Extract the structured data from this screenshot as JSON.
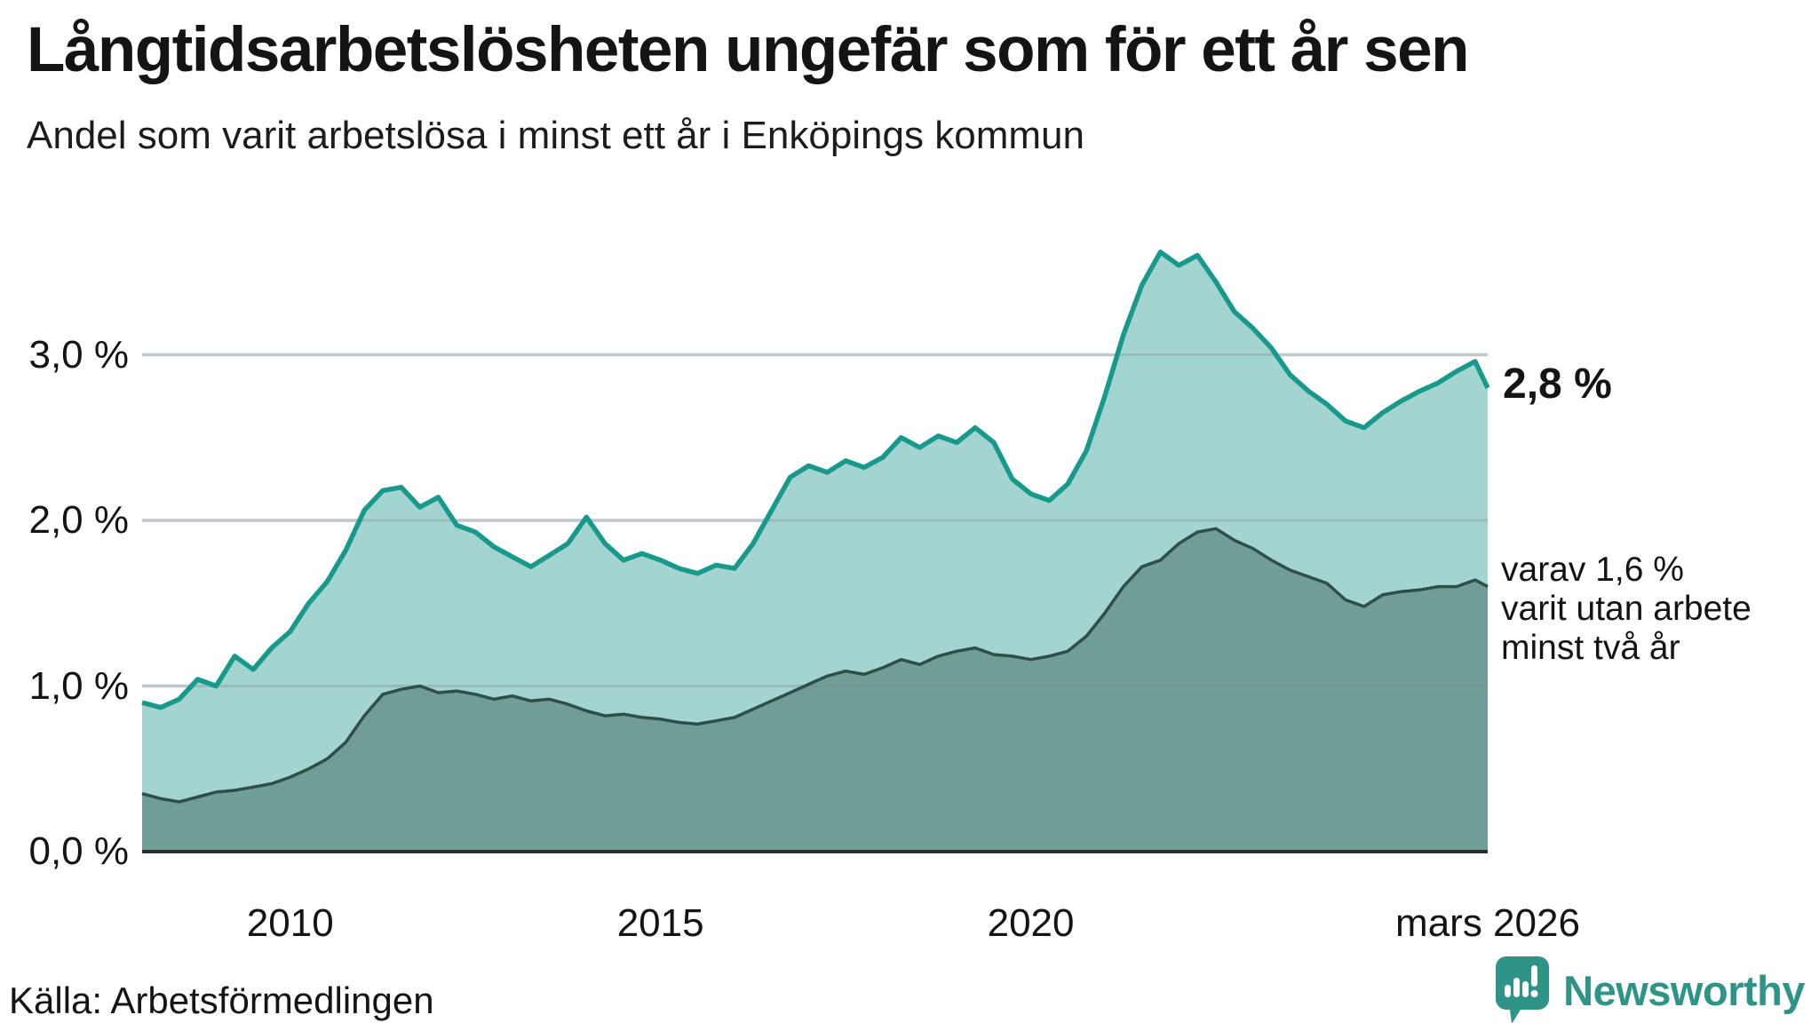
{
  "title": "Långtidsarbetslösheten ungefär som för ett år sen",
  "subtitle": "Andel som varit arbetslösa i minst ett år i Enköpings kommun",
  "annotations": {
    "latest_value": "2,8 %",
    "secondary_line1": "varav 1,6 %",
    "secondary_line2": "varit utan arbete",
    "secondary_line3": "minst två år"
  },
  "source": "Källa: Arbetsförmedlingen",
  "logo": {
    "text": "Newsworthy",
    "icon": "speech-bubble-bar-chart-icon"
  },
  "colors": {
    "series1_line": "#17998b",
    "series1_fill": "#a3d4cf",
    "series2_line": "#2e4f49",
    "series2_fill": "#709d98",
    "gridline": "#dfe3e8",
    "gridline_overlay": "rgba(120,132,144,0.30)",
    "axis_line": "#26302f",
    "text": "#141414",
    "brand_teal": "#2f9488"
  },
  "chart_data": {
    "type": "area",
    "title": "Långtidsarbetslösheten ungefär som för ett år sen",
    "subtitle": "Andel som varit arbetslösa i minst ett år i Enköpings kommun",
    "unit": "%",
    "x_unit": "decimal-year (monthly series, jan 2008 – mars 2026)",
    "xlim": [
      2008.0,
      2026.17
    ],
    "ylim": [
      0,
      3.7
    ],
    "grid": "horizontal",
    "y_ticks": [
      {
        "label": "3,0 %",
        "value": 3
      },
      {
        "label": "2,0 %",
        "value": 2
      },
      {
        "label": "1,0 %",
        "value": 1
      },
      {
        "label": "0,0 %",
        "value": 0
      }
    ],
    "x_ticks": [
      {
        "label": "2010",
        "t": 2010
      },
      {
        "label": "2015",
        "t": 2015
      },
      {
        "label": "2020",
        "t": 2020
      },
      {
        "label": "mars 2026",
        "t": 2026.17
      }
    ],
    "x": [
      2008.0,
      2008.25,
      2008.5,
      2008.75,
      2009.0,
      2009.25,
      2009.5,
      2009.75,
      2010.0,
      2010.25,
      2010.5,
      2010.75,
      2011.0,
      2011.25,
      2011.5,
      2011.75,
      2012.0,
      2012.25,
      2012.5,
      2012.75,
      2013.0,
      2013.25,
      2013.5,
      2013.75,
      2014.0,
      2014.25,
      2014.5,
      2014.75,
      2015.0,
      2015.25,
      2015.5,
      2015.75,
      2016.0,
      2016.25,
      2016.5,
      2016.75,
      2017.0,
      2017.25,
      2017.5,
      2017.75,
      2018.0,
      2018.25,
      2018.5,
      2018.75,
      2019.0,
      2019.25,
      2019.5,
      2019.75,
      2020.0,
      2020.25,
      2020.5,
      2020.75,
      2021.0,
      2021.25,
      2021.5,
      2021.75,
      2022.0,
      2022.25,
      2022.5,
      2022.75,
      2023.0,
      2023.25,
      2023.5,
      2023.75,
      2024.0,
      2024.25,
      2024.5,
      2024.75,
      2025.0,
      2025.25,
      2025.5,
      2025.75,
      2026.0,
      2026.17
    ],
    "series": [
      {
        "name": "Arbetslösa minst ett år",
        "end_label": "2,8 %",
        "values": [
          0.9,
          0.87,
          0.92,
          1.04,
          1.0,
          1.18,
          1.1,
          1.23,
          1.33,
          1.5,
          1.63,
          1.82,
          2.06,
          2.18,
          2.2,
          2.08,
          2.14,
          1.97,
          1.93,
          1.84,
          1.78,
          1.72,
          1.79,
          1.86,
          2.02,
          1.86,
          1.76,
          1.8,
          1.76,
          1.71,
          1.68,
          1.73,
          1.71,
          1.86,
          2.06,
          2.26,
          2.33,
          2.29,
          2.36,
          2.32,
          2.38,
          2.5,
          2.44,
          2.51,
          2.47,
          2.56,
          2.47,
          2.25,
          2.16,
          2.12,
          2.22,
          2.42,
          2.75,
          3.12,
          3.42,
          3.62,
          3.54,
          3.6,
          3.44,
          3.26,
          3.16,
          3.04,
          2.88,
          2.78,
          2.7,
          2.6,
          2.56,
          2.65,
          2.72,
          2.78,
          2.83,
          2.9,
          2.96,
          2.8
        ]
      },
      {
        "name": "Varav arbetslösa minst två år",
        "end_label": "varav 1,6 % varit utan arbete minst två år",
        "values": [
          0.35,
          0.32,
          0.3,
          0.33,
          0.36,
          0.37,
          0.39,
          0.41,
          0.45,
          0.5,
          0.56,
          0.66,
          0.82,
          0.95,
          0.98,
          1.0,
          0.96,
          0.97,
          0.95,
          0.92,
          0.94,
          0.91,
          0.92,
          0.89,
          0.85,
          0.82,
          0.83,
          0.81,
          0.8,
          0.78,
          0.77,
          0.79,
          0.81,
          0.86,
          0.91,
          0.96,
          1.01,
          1.06,
          1.09,
          1.07,
          1.11,
          1.16,
          1.13,
          1.18,
          1.21,
          1.23,
          1.19,
          1.18,
          1.16,
          1.18,
          1.21,
          1.3,
          1.44,
          1.6,
          1.72,
          1.76,
          1.86,
          1.93,
          1.95,
          1.88,
          1.83,
          1.76,
          1.7,
          1.66,
          1.62,
          1.52,
          1.48,
          1.55,
          1.57,
          1.58,
          1.6,
          1.6,
          1.64,
          1.6
        ]
      }
    ]
  }
}
